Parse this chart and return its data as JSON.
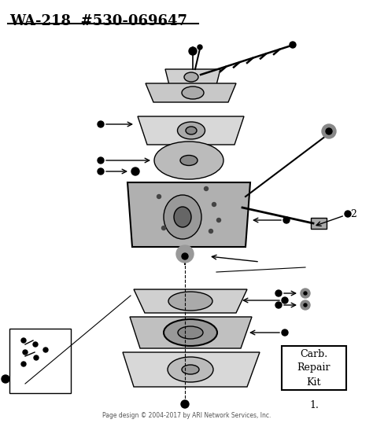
{
  "title": "WA-218  #530-069647",
  "footer": "Page design © 2004-2017 by ARI Network Services, Inc.",
  "background_color": "#ffffff",
  "title_color": "#000000",
  "box_label_lines": [
    "Carb.",
    "Repair",
    "Kit"
  ],
  "label_1": "1.",
  "label_2": "2",
  "figsize": [
    4.74,
    5.38
  ],
  "dpi": 100
}
